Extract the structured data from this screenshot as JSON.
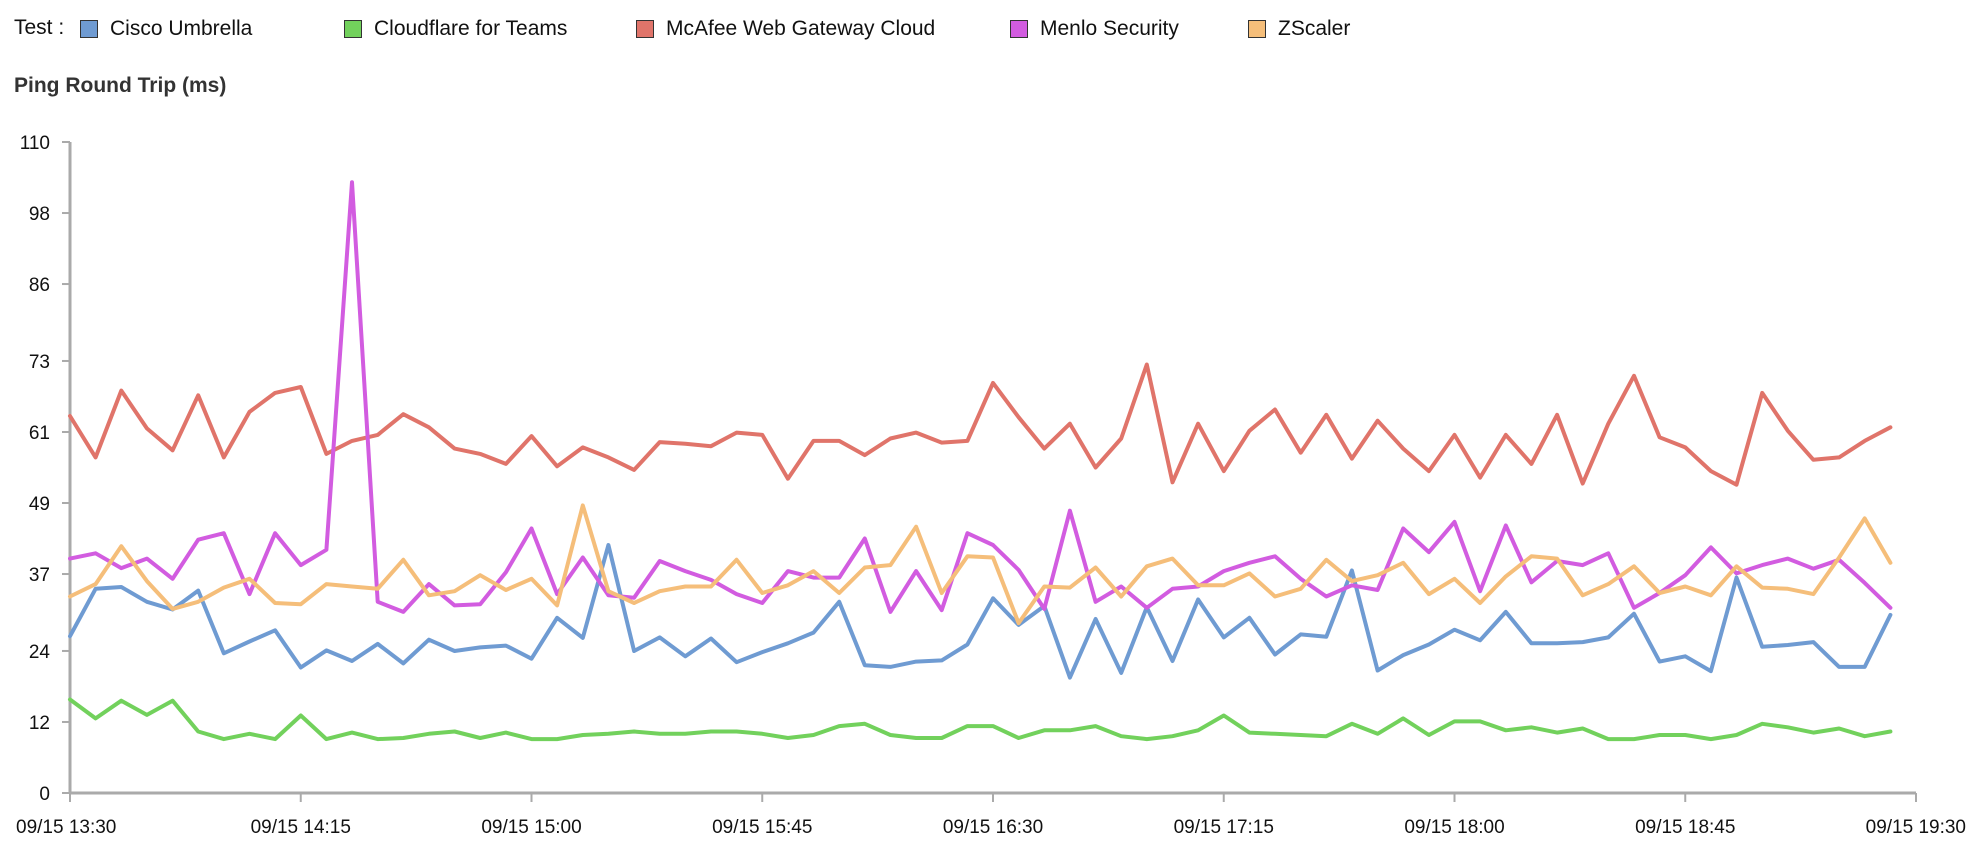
{
  "legend": {
    "title": "Test :",
    "items": [
      {
        "label": "Cisco Umbrella",
        "color": "#6f9bd2"
      },
      {
        "label": "Cloudflare for Teams",
        "color": "#72d15c"
      },
      {
        "label": "McAfee Web Gateway Cloud",
        "color": "#e0746a"
      },
      {
        "label": "Menlo Security",
        "color": "#d25ce0"
      },
      {
        "label": "ZScaler",
        "color": "#f5be7a"
      }
    ]
  },
  "chart_data": {
    "type": "line",
    "title": "Ping Round Trip (ms)",
    "xlabel": "",
    "ylabel": "",
    "ylim": [
      0,
      110
    ],
    "yticks": [
      0,
      12,
      24,
      37,
      49,
      61,
      73,
      86,
      98,
      110
    ],
    "xlim": [
      "09/15 13:30",
      "09/15 19:30"
    ],
    "xticks": [
      "09/15 13:30",
      "09/15 14:15",
      "09/15 15:00",
      "09/15 15:45",
      "09/15 16:30",
      "09/15 17:15",
      "09/15 18:00",
      "09/15 18:45",
      "09/15 19:30"
    ],
    "x": [
      "09/15 13:30",
      "09/15 13:35",
      "09/15 13:40",
      "09/15 13:45",
      "09/15 13:50",
      "09/15 13:55",
      "09/15 14:00",
      "09/15 14:05",
      "09/15 14:10",
      "09/15 14:15",
      "09/15 14:20",
      "09/15 14:25",
      "09/15 14:30",
      "09/15 14:35",
      "09/15 14:40",
      "09/15 14:45",
      "09/15 14:50",
      "09/15 14:55",
      "09/15 15:00",
      "09/15 15:05",
      "09/15 15:10",
      "09/15 15:15",
      "09/15 15:20",
      "09/15 15:25",
      "09/15 15:30",
      "09/15 15:35",
      "09/15 15:40",
      "09/15 15:45",
      "09/15 15:50",
      "09/15 15:55",
      "09/15 16:00",
      "09/15 16:05",
      "09/15 16:10",
      "09/15 16:15",
      "09/15 16:20",
      "09/15 16:25",
      "09/15 16:30",
      "09/15 16:35",
      "09/15 16:40",
      "09/15 16:45",
      "09/15 16:50",
      "09/15 16:55",
      "09/15 17:00",
      "09/15 17:05",
      "09/15 17:10",
      "09/15 17:15",
      "09/15 17:20",
      "09/15 17:25",
      "09/15 17:30",
      "09/15 17:35",
      "09/15 17:40",
      "09/15 17:45",
      "09/15 17:50",
      "09/15 17:55",
      "09/15 18:00",
      "09/15 18:05",
      "09/15 18:10",
      "09/15 18:15",
      "09/15 18:20",
      "09/15 18:25",
      "09/15 18:30",
      "09/15 18:35",
      "09/15 18:40",
      "09/15 18:45",
      "09/15 18:50",
      "09/15 18:55",
      "09/15 19:00",
      "09/15 19:05",
      "09/15 19:10",
      "09/15 19:15",
      "09/15 19:20",
      "09/15 19:25"
    ],
    "series": [
      {
        "name": "Cisco Umbrella",
        "color": "#6f9bd2",
        "values": [
          26.5,
          34.5,
          34.8,
          32.3,
          31.0,
          34.2,
          23.6,
          25.6,
          27.5,
          21.2,
          24.1,
          22.3,
          25.2,
          21.9,
          25.9,
          24.0,
          24.6,
          24.9,
          22.7,
          29.6,
          26.2,
          41.9,
          24.0,
          26.3,
          23.1,
          26.1,
          22.1,
          23.8,
          25.3,
          27.1,
          32.3,
          21.6,
          21.3,
          22.2,
          22.4,
          25.1,
          32.9,
          28.4,
          31.6,
          19.5,
          29.4,
          20.3,
          31.4,
          22.3,
          32.7,
          26.3,
          29.6,
          23.4,
          26.8,
          26.4,
          37.6,
          20.7,
          23.3,
          25.1,
          27.6,
          25.8,
          30.6,
          25.3,
          25.3,
          25.5,
          26.3,
          30.3,
          22.2,
          23.1,
          20.6,
          36.4,
          24.7,
          25.0,
          25.5,
          21.3,
          21.3,
          30.1
        ]
      },
      {
        "name": "Cloudflare for Teams",
        "color": "#72d15c",
        "values": [
          15.8,
          12.6,
          15.6,
          13.2,
          15.6,
          10.4,
          9.1,
          10.0,
          9.1,
          13.1,
          9.1,
          10.2,
          9.1,
          9.3,
          10.0,
          10.4,
          9.3,
          10.2,
          9.1,
          9.1,
          9.8,
          10.0,
          10.4,
          10.0,
          10.0,
          10.4,
          10.4,
          10.0,
          9.3,
          9.8,
          11.3,
          11.7,
          9.8,
          9.3,
          9.3,
          11.3,
          11.3,
          9.3,
          10.6,
          10.6,
          11.3,
          9.6,
          9.1,
          9.6,
          10.6,
          13.1,
          10.2,
          10.0,
          9.8,
          9.6,
          11.7,
          10.0,
          12.6,
          9.8,
          12.1,
          12.1,
          10.6,
          11.1,
          10.2,
          10.9,
          9.1,
          9.1,
          9.8,
          9.8,
          9.1,
          9.8,
          11.7,
          11.1,
          10.2,
          10.9,
          9.6,
          10.4
        ]
      },
      {
        "name": "McAfee Web Gateway Cloud",
        "color": "#e0746a",
        "values": [
          63.7,
          56.7,
          68.0,
          61.6,
          57.9,
          67.2,
          56.7,
          64.4,
          67.6,
          68.6,
          57.3,
          59.5,
          60.5,
          64.0,
          61.8,
          58.2,
          57.3,
          55.6,
          60.3,
          55.2,
          58.4,
          56.7,
          54.6,
          59.3,
          59.0,
          58.6,
          60.9,
          60.5,
          53.1,
          59.5,
          59.5,
          57.1,
          59.9,
          60.9,
          59.2,
          59.5,
          69.3,
          63.5,
          58.2,
          62.4,
          55.0,
          59.9,
          72.4,
          52.5,
          62.4,
          54.4,
          61.2,
          64.8,
          57.5,
          63.9,
          56.5,
          62.9,
          58.2,
          54.4,
          60.5,
          53.3,
          60.5,
          55.6,
          63.9,
          52.3,
          62.4,
          70.5,
          60.1,
          58.4,
          54.4,
          52.1,
          67.6,
          61.2,
          56.3,
          56.7,
          59.5,
          61.8
        ]
      },
      {
        "name": "Menlo Security",
        "color": "#d25ce0",
        "values": [
          39.6,
          40.5,
          38.0,
          39.6,
          36.2,
          42.8,
          43.9,
          33.6,
          43.9,
          38.5,
          41.1,
          103.2,
          32.3,
          30.6,
          35.3,
          31.7,
          31.9,
          37.3,
          44.7,
          33.6,
          39.8,
          33.4,
          33.0,
          39.2,
          37.5,
          36.0,
          33.6,
          32.1,
          37.5,
          36.4,
          36.4,
          43.0,
          30.6,
          37.5,
          30.9,
          43.9,
          41.9,
          37.7,
          31.1,
          47.7,
          32.3,
          34.9,
          31.3,
          34.5,
          34.9,
          37.5,
          38.9,
          40.0,
          36.2,
          33.2,
          35.1,
          34.3,
          44.7,
          40.7,
          45.8,
          34.1,
          45.2,
          35.6,
          39.2,
          38.5,
          40.5,
          31.3,
          33.8,
          36.8,
          41.5,
          37.1,
          38.5,
          39.6,
          37.9,
          39.4,
          35.5,
          31.3
        ]
      },
      {
        "name": "ZScaler",
        "color": "#f5be7a",
        "values": [
          33.2,
          35.3,
          41.7,
          35.8,
          31.1,
          32.3,
          34.7,
          36.2,
          32.1,
          31.9,
          35.3,
          34.9,
          34.5,
          39.4,
          33.4,
          34.1,
          36.8,
          34.3,
          36.2,
          31.7,
          48.6,
          34.1,
          32.1,
          34.1,
          34.9,
          34.9,
          39.4,
          33.8,
          35.1,
          37.5,
          33.8,
          38.1,
          38.5,
          45.0,
          33.8,
          40.0,
          39.8,
          28.7,
          34.9,
          34.7,
          38.1,
          33.2,
          38.3,
          39.6,
          35.1,
          35.1,
          37.1,
          33.2,
          34.5,
          39.4,
          35.8,
          36.8,
          38.9,
          33.6,
          36.2,
          32.1,
          36.6,
          40.0,
          39.6,
          33.4,
          35.3,
          38.3,
          33.8,
          34.9,
          33.4,
          38.3,
          34.7,
          34.5,
          33.6,
          39.8,
          46.4,
          38.9
        ]
      }
    ],
    "grid": false,
    "legend_position": "top-left"
  }
}
